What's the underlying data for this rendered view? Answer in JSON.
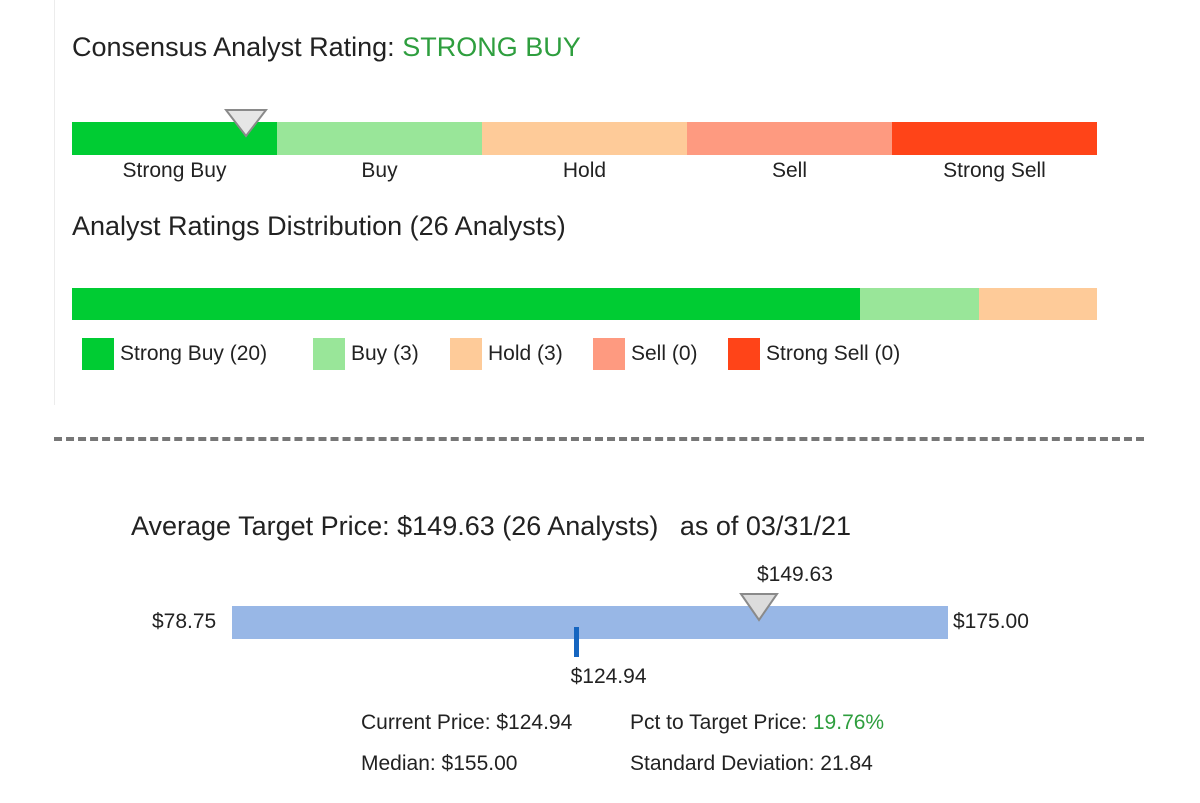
{
  "rating": {
    "title_prefix": "Consensus Analyst Rating:",
    "title_value": "STRONG BUY",
    "scale": [
      {
        "label": "Strong Buy",
        "color": "#00cc33"
      },
      {
        "label": "Buy",
        "color": "#99e699"
      },
      {
        "label": "Hold",
        "color": "#fecb99"
      },
      {
        "label": "Sell",
        "color": "#fe9a80"
      },
      {
        "label": "Strong Sell",
        "color": "#ff4418"
      }
    ],
    "marker_icon": "triangle-down-icon"
  },
  "distribution": {
    "title": "Analyst Ratings Distribution (26 Analysts)",
    "total": 26,
    "counts": [
      20,
      3,
      3,
      0,
      0
    ],
    "legend": [
      {
        "label": "Strong Buy (20)",
        "color": "#00cc33"
      },
      {
        "label": "Buy (3)",
        "color": "#99e699"
      },
      {
        "label": "Hold (3)",
        "color": "#fecb99"
      },
      {
        "label": "Sell (0)",
        "color": "#fe9a80"
      },
      {
        "label": "Strong Sell (0)",
        "color": "#ff4418"
      }
    ]
  },
  "target": {
    "title": "Average Target Price: $149.63 (26 Analysts)",
    "as_of": "as of 03/31/21",
    "low_label": "$78.75",
    "high_label": "$175.00",
    "avg_label": "$149.63",
    "current_label": "$124.94",
    "low": 78.75,
    "high": 175.0,
    "avg": 149.63,
    "current": 124.94,
    "bar_color": "#98b7e6",
    "current_marker_color": "#1565c0"
  },
  "stats": {
    "current_price": "Current Price: $124.94",
    "pct_label": "Pct to Target Price:",
    "pct_value": "19.76%",
    "median": "Median: $155.00",
    "std_dev": "Standard Deviation: 21.84"
  },
  "chart_data": [
    {
      "type": "bar",
      "title": "Consensus Analyst Rating: STRONG BUY",
      "categories": [
        "Strong Buy",
        "Buy",
        "Hold",
        "Sell",
        "Strong Sell"
      ],
      "selected": "Strong Buy"
    },
    {
      "type": "bar",
      "title": "Analyst Ratings Distribution (26 Analysts)",
      "categories": [
        "Strong Buy",
        "Buy",
        "Hold",
        "Sell",
        "Strong Sell"
      ],
      "values": [
        20,
        3,
        3,
        0,
        0
      ]
    },
    {
      "type": "bar",
      "title": "Average Target Price: $149.63 (26 Analysts)",
      "xlim": [
        78.75,
        175.0
      ],
      "values": {
        "low": 78.75,
        "high": 175.0,
        "average": 149.63,
        "current": 124.94
      }
    }
  ]
}
